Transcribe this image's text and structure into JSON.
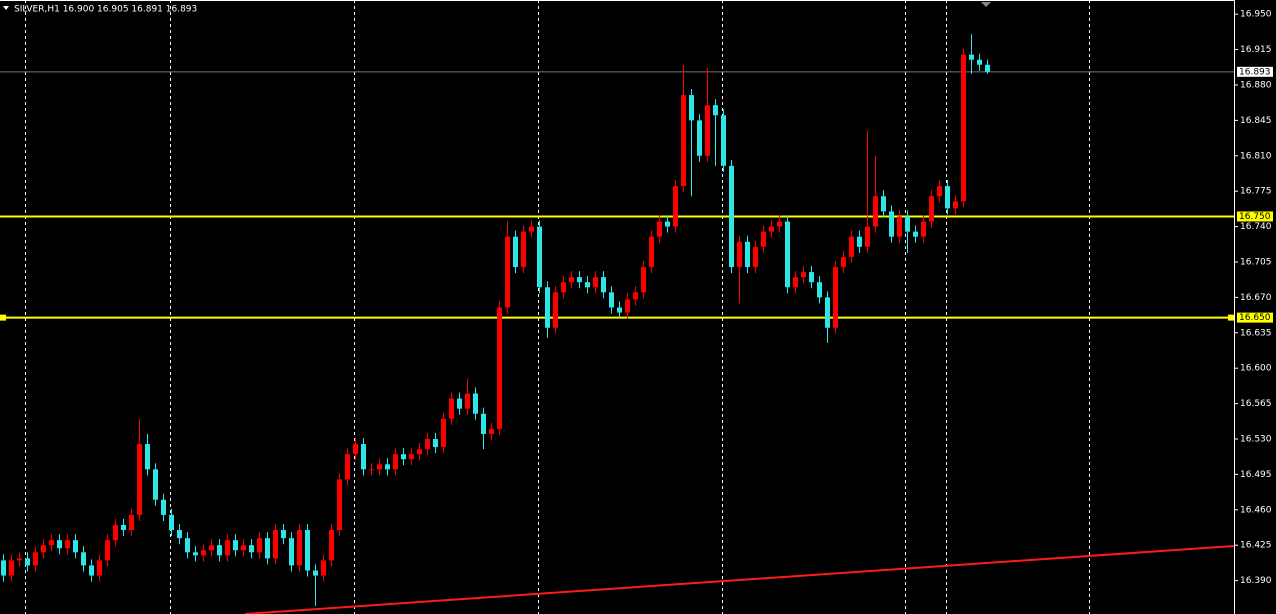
{
  "chart_data": {
    "type": "candlestick",
    "title": "SILVER,H1  16.900 16.905 16.891 16.893",
    "up_color": "#ff0000",
    "down_color": "#2ee6e6",
    "ylim": [
      16.357,
      16.964
    ],
    "yticks": [
      {
        "value": 16.95,
        "label": "16.950"
      },
      {
        "value": 16.915,
        "label": "16.915"
      },
      {
        "value": 16.88,
        "label": "16.880"
      },
      {
        "value": 16.845,
        "label": "16.845"
      },
      {
        "value": 16.81,
        "label": "16.810"
      },
      {
        "value": 16.775,
        "label": "16.775"
      },
      {
        "value": 16.74,
        "label": "16.740"
      },
      {
        "value": 16.705,
        "label": "16.705"
      },
      {
        "value": 16.67,
        "label": "16.670"
      },
      {
        "value": 16.635,
        "label": "16.635"
      },
      {
        "value": 16.6,
        "label": "16.600"
      },
      {
        "value": 16.565,
        "label": "16.565"
      },
      {
        "value": 16.53,
        "label": "16.530"
      },
      {
        "value": 16.495,
        "label": "16.495"
      },
      {
        "value": 16.46,
        "label": "16.460"
      },
      {
        "value": 16.425,
        "label": "16.425"
      },
      {
        "value": 16.39,
        "label": "16.390"
      }
    ],
    "level_color": "#ffff00",
    "levels": [
      {
        "value": 16.75,
        "label": "16.750"
      },
      {
        "value": 16.65,
        "label": "16.650"
      }
    ],
    "current_price": {
      "value": 16.893,
      "label": "16.893"
    },
    "open": [
      16.41,
      16.395,
      16.41,
      16.412,
      16.405,
      16.418,
      16.425,
      16.43,
      16.422,
      16.43,
      16.418,
      16.405,
      16.395,
      16.41,
      16.43,
      16.445,
      16.44,
      16.455,
      16.525,
      16.5,
      16.47,
      16.455,
      16.44,
      16.432,
      16.418,
      16.415,
      16.42,
      16.425,
      16.415,
      16.43,
      16.42,
      16.425,
      16.418,
      16.432,
      16.412,
      16.44,
      16.432,
      16.405,
      16.44,
      16.4,
      16.395,
      16.41,
      16.44,
      16.49,
      16.515,
      16.525,
      16.5,
      16.5,
      16.505,
      16.5,
      16.515,
      16.51,
      16.515,
      16.52,
      16.53,
      16.522,
      16.55,
      16.57,
      16.56,
      16.575,
      16.555,
      16.535,
      16.54,
      16.66,
      16.73,
      16.7,
      16.735,
      16.74,
      16.68,
      16.64,
      16.675,
      16.685,
      16.69,
      16.685,
      16.68,
      16.69,
      16.675,
      16.66,
      16.655,
      16.668,
      16.675,
      16.7,
      16.73,
      16.745,
      16.74,
      16.78,
      16.87,
      16.845,
      16.81,
      16.86,
      16.85,
      16.8,
      16.7,
      16.725,
      16.7,
      16.72,
      16.735,
      16.74,
      16.745,
      16.68,
      16.69,
      16.695,
      16.685,
      16.67,
      16.64,
      16.7,
      16.71,
      16.73,
      16.72,
      16.74,
      16.77,
      16.755,
      16.73,
      16.75,
      16.735,
      16.73,
      16.745,
      16.77,
      16.78,
      16.758,
      16.765,
      16.91,
      16.905,
      16.9
    ],
    "high": [
      16.416,
      16.416,
      16.418,
      16.418,
      16.424,
      16.431,
      16.436,
      16.436,
      16.436,
      16.436,
      16.424,
      16.411,
      16.416,
      16.436,
      16.451,
      16.451,
      16.461,
      16.55,
      16.535,
      16.506,
      16.476,
      16.461,
      16.446,
      16.438,
      16.424,
      16.426,
      16.431,
      16.431,
      16.436,
      16.436,
      16.431,
      16.431,
      16.438,
      16.438,
      16.446,
      16.446,
      16.438,
      16.446,
      16.446,
      16.406,
      16.416,
      16.446,
      16.496,
      16.521,
      16.531,
      16.531,
      16.506,
      16.511,
      16.511,
      16.521,
      16.521,
      16.521,
      16.526,
      16.536,
      16.536,
      16.556,
      16.576,
      16.576,
      16.59,
      16.581,
      16.561,
      16.546,
      16.666,
      16.745,
      16.736,
      16.741,
      16.746,
      16.746,
      16.686,
      16.681,
      16.691,
      16.696,
      16.696,
      16.691,
      16.696,
      16.696,
      16.681,
      16.666,
      16.674,
      16.681,
      16.706,
      16.736,
      16.751,
      16.751,
      16.786,
      16.9,
      16.876,
      16.851,
      16.897,
      16.866,
      16.856,
      16.806,
      16.731,
      16.731,
      16.726,
      16.741,
      16.746,
      16.751,
      16.751,
      16.696,
      16.701,
      16.701,
      16.691,
      16.676,
      16.706,
      16.716,
      16.736,
      16.736,
      16.835,
      16.81,
      16.776,
      16.761,
      16.756,
      16.756,
      16.741,
      16.751,
      16.776,
      16.786,
      16.786,
      16.771,
      16.916,
      16.93,
      16.911,
      16.905
    ],
    "low": [
      16.389,
      16.389,
      16.404,
      16.399,
      16.399,
      16.412,
      16.419,
      16.416,
      16.416,
      16.412,
      16.399,
      16.389,
      16.389,
      16.404,
      16.424,
      16.434,
      16.434,
      16.449,
      16.494,
      16.464,
      16.449,
      16.434,
      16.426,
      16.412,
      16.409,
      16.409,
      16.414,
      16.409,
      16.409,
      16.414,
      16.414,
      16.412,
      16.412,
      16.406,
      16.406,
      16.426,
      16.399,
      16.399,
      16.394,
      16.365,
      16.389,
      16.404,
      16.434,
      16.484,
      16.509,
      16.494,
      16.494,
      16.494,
      16.494,
      16.494,
      16.504,
      16.504,
      16.509,
      16.514,
      16.516,
      16.516,
      16.544,
      16.554,
      16.554,
      16.549,
      16.52,
      16.529,
      16.534,
      16.654,
      16.694,
      16.694,
      16.729,
      16.674,
      16.63,
      16.634,
      16.669,
      16.679,
      16.679,
      16.674,
      16.674,
      16.669,
      16.654,
      16.649,
      16.649,
      16.662,
      16.669,
      16.694,
      16.724,
      16.734,
      16.734,
      16.774,
      16.77,
      16.804,
      16.804,
      16.8,
      16.794,
      16.694,
      16.664,
      16.694,
      16.694,
      16.714,
      16.729,
      16.734,
      16.674,
      16.674,
      16.684,
      16.679,
      16.664,
      16.625,
      16.634,
      16.694,
      16.704,
      16.714,
      16.714,
      16.734,
      16.749,
      16.724,
      16.724,
      16.714,
      16.724,
      16.724,
      16.739,
      16.764,
      16.752,
      16.752,
      16.759,
      16.891,
      16.894,
      16.891
    ],
    "close": [
      16.395,
      16.41,
      16.412,
      16.405,
      16.418,
      16.425,
      16.43,
      16.422,
      16.43,
      16.418,
      16.405,
      16.395,
      16.41,
      16.43,
      16.445,
      16.44,
      16.455,
      16.525,
      16.5,
      16.47,
      16.455,
      16.44,
      16.432,
      16.418,
      16.415,
      16.42,
      16.425,
      16.415,
      16.43,
      16.42,
      16.425,
      16.418,
      16.432,
      16.412,
      16.44,
      16.432,
      16.405,
      16.44,
      16.4,
      16.395,
      16.41,
      16.44,
      16.49,
      16.515,
      16.525,
      16.5,
      16.5,
      16.505,
      16.5,
      16.515,
      16.51,
      16.515,
      16.52,
      16.53,
      16.522,
      16.55,
      16.57,
      16.56,
      16.575,
      16.555,
      16.535,
      16.54,
      16.66,
      16.73,
      16.7,
      16.735,
      16.74,
      16.68,
      16.64,
      16.675,
      16.685,
      16.69,
      16.685,
      16.68,
      16.69,
      16.675,
      16.66,
      16.655,
      16.668,
      16.675,
      16.7,
      16.73,
      16.745,
      16.74,
      16.78,
      16.87,
      16.845,
      16.81,
      16.86,
      16.85,
      16.8,
      16.7,
      16.725,
      16.7,
      16.72,
      16.735,
      16.74,
      16.745,
      16.68,
      16.69,
      16.695,
      16.685,
      16.67,
      16.64,
      16.7,
      16.71,
      16.73,
      16.72,
      16.74,
      16.77,
      16.755,
      16.73,
      16.75,
      16.735,
      16.73,
      16.745,
      16.77,
      16.78,
      16.758,
      16.765,
      16.91,
      16.905,
      16.9,
      16.893
    ]
  }
}
